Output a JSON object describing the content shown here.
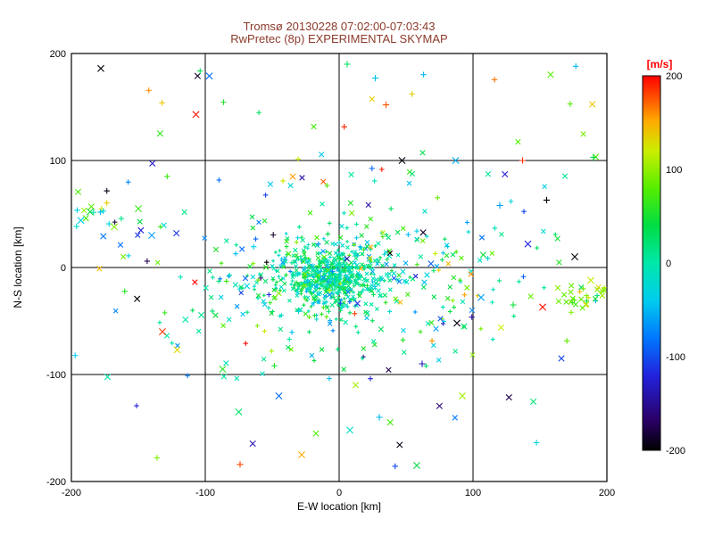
{
  "header": {
    "title_line1": "Tromsø 20130228 07:02:00-07:03:43",
    "title_line2": "RwPretec (8p) EXPERIMENTAL SKYMAP",
    "title_color": "#8b3a2b"
  },
  "axes": {
    "xlabel": "E-W location [km]",
    "ylabel": "N-S location [km]",
    "xlim": [
      -200,
      200
    ],
    "ylim": [
      -200,
      200
    ],
    "xticks": [
      -200,
      -100,
      0,
      100,
      200
    ],
    "yticks": [
      -200,
      -100,
      0,
      100,
      200
    ],
    "grid_lines": [
      -100,
      0,
      100
    ],
    "axis_color": "#000000",
    "background_color": "#ffffff"
  },
  "colorbar": {
    "label": "[m/s]",
    "label_color": "#ff0000",
    "ticks": [
      200,
      100,
      0,
      -100,
      -200
    ],
    "min": -200,
    "max": 200
  },
  "chart_data": {
    "type": "scatter",
    "title": "Tromsø 20130228 07:02:00-07:03:43 / RwPretec (8p) EXPERIMENTAL SKYMAP",
    "xlabel": "E-W location [km]",
    "ylabel": "N-S location [km]",
    "xlim": [
      -200,
      200
    ],
    "ylim": [
      -200,
      200
    ],
    "value_label": "[m/s]",
    "value_range": [
      -200,
      200
    ],
    "marker": "x",
    "legend": "none",
    "grid": "on",
    "seed": 20130228,
    "colormap_stops": [
      {
        "t": 0.0,
        "color": "#000000"
      },
      {
        "t": 0.08,
        "color": "#2a0066"
      },
      {
        "t": 0.2,
        "color": "#2222dd"
      },
      {
        "t": 0.3,
        "color": "#0077ff"
      },
      {
        "t": 0.4,
        "color": "#00ccee"
      },
      {
        "t": 0.5,
        "color": "#00e8aa"
      },
      {
        "t": 0.6,
        "color": "#00dd44"
      },
      {
        "t": 0.7,
        "color": "#55ee00"
      },
      {
        "t": 0.8,
        "color": "#ccee00"
      },
      {
        "t": 0.88,
        "color": "#ffaa00"
      },
      {
        "t": 0.95,
        "color": "#ff4400"
      },
      {
        "t": 1.0,
        "color": "#ff0000"
      }
    ],
    "clusters": [
      {
        "name": "dense-core",
        "n": 550,
        "cx": -8,
        "cy": -8,
        "sx": 20,
        "sy": 13,
        "v_mean": 5,
        "v_sd": 32,
        "size": 2
      },
      {
        "name": "mid-spread",
        "n": 280,
        "cx": 5,
        "cy": -15,
        "sx": 55,
        "sy": 35,
        "v_mean": 15,
        "v_sd": 55,
        "size": 2.4
      },
      {
        "name": "outer-halo",
        "n": 120,
        "cx": 0,
        "cy": 10,
        "sx": 95,
        "sy": 60,
        "v_mean": 0,
        "v_sd": 85,
        "size": 2.8
      },
      {
        "name": "right-edge",
        "n": 30,
        "cx": 183,
        "cy": -27,
        "sx": 12,
        "sy": 6,
        "v_mean": 90,
        "v_sd": 30,
        "size": 2.8
      },
      {
        "name": "left-edge",
        "n": 16,
        "cx": -182,
        "cy": 50,
        "sx": 12,
        "sy": 9,
        "v_mean": 50,
        "v_sd": 60,
        "size": 3.2
      },
      {
        "name": "sparse-field",
        "n": 55,
        "uniform": true,
        "x0": -200,
        "x1": 200,
        "y0": -190,
        "y1": 195,
        "v_uniform": true,
        "size": 3.2
      }
    ],
    "feature_points": [
      {
        "x": -107,
        "y": 143,
        "v": 195
      },
      {
        "x": -178,
        "y": 186,
        "v": -195
      },
      {
        "x": -97,
        "y": 179,
        "v": -85
      },
      {
        "x": 27,
        "y": 177,
        "v": -45
      },
      {
        "x": 6,
        "y": 190,
        "v": 30
      },
      {
        "x": 35,
        "y": 152,
        "v": 175
      },
      {
        "x": 47,
        "y": 100,
        "v": -195
      },
      {
        "x": 87,
        "y": 100,
        "v": -55
      },
      {
        "x": 137,
        "y": 100,
        "v": 185
      },
      {
        "x": 190,
        "y": 103,
        "v": 40
      },
      {
        "x": -150,
        "y": 55,
        "v": 65
      },
      {
        "x": -186,
        "y": 52,
        "v": 45
      },
      {
        "x": -193,
        "y": 44,
        "v": -40
      },
      {
        "x": -168,
        "y": 38,
        "v": 95
      },
      {
        "x": -140,
        "y": 30,
        "v": -60
      },
      {
        "x": 155,
        "y": 63,
        "v": -200
      },
      {
        "x": 120,
        "y": 58,
        "v": -60
      },
      {
        "x": 141,
        "y": 22,
        "v": -120
      },
      {
        "x": 176,
        "y": 10,
        "v": -195
      },
      {
        "x": 188,
        "y": -12,
        "v": 115
      },
      {
        "x": 152,
        "y": -37,
        "v": 195
      },
      {
        "x": -132,
        "y": -60,
        "v": 185
      },
      {
        "x": -121,
        "y": -77,
        "v": 130
      },
      {
        "x": -87,
        "y": -95,
        "v": 60
      },
      {
        "x": 62,
        "y": -90,
        "v": -135
      },
      {
        "x": 88,
        "y": -52,
        "v": -195
      },
      {
        "x": 106,
        "y": -28,
        "v": -60
      },
      {
        "x": 130,
        "y": -35,
        "v": 45
      },
      {
        "x": -45,
        "y": -120,
        "v": -85
      },
      {
        "x": 30,
        "y": -140,
        "v": -50
      },
      {
        "x": 92,
        "y": -120,
        "v": 105
      },
      {
        "x": 8,
        "y": -152,
        "v": -15
      },
      {
        "x": -28,
        "y": -175,
        "v": 150
      },
      {
        "x": 58,
        "y": -185,
        "v": 40
      },
      {
        "x": -74,
        "y": -184,
        "v": 180
      },
      {
        "x": -75,
        "y": -135,
        "v": 25
      }
    ]
  }
}
